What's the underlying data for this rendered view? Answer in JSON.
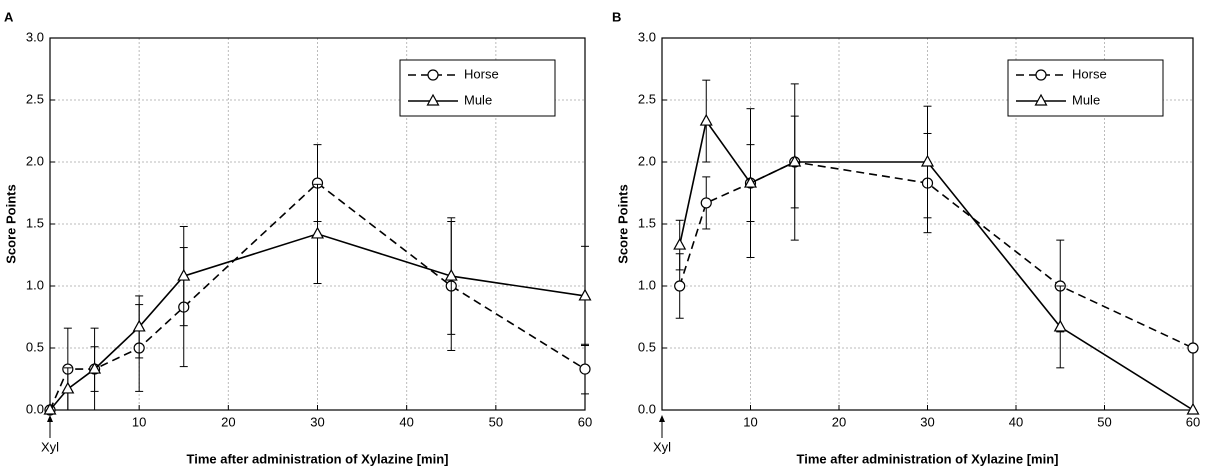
{
  "chart_data": [
    {
      "type": "line",
      "panel": "A",
      "xlabel": "Time after administration of Xylazine [min]",
      "ylabel": "Score Points",
      "annotation": "Xyl",
      "x": [
        0,
        2,
        5,
        10,
        15,
        30,
        45,
        60
      ],
      "xlim": [
        0,
        60
      ],
      "xticks": [
        10,
        20,
        30,
        40,
        50,
        60
      ],
      "ylim": [
        0,
        3
      ],
      "yticks": [
        {
          "value": 0,
          "label": "0.0"
        },
        {
          "value": 0.5,
          "label": "0.5"
        },
        {
          "value": 1,
          "label": "1.0"
        },
        {
          "value": 1.5,
          "label": "1.5"
        },
        {
          "value": 2,
          "label": "2.0"
        },
        {
          "value": 2.5,
          "label": "2.5"
        },
        {
          "value": 3,
          "label": "3.0"
        }
      ],
      "grid": true,
      "legend": "upper right",
      "series": [
        {
          "name": "Horse",
          "color": "#000000",
          "linestyle": "dashed",
          "marker": "circle",
          "values": [
            0,
            0.33,
            0.33,
            0.5,
            0.83,
            1.83,
            1.0,
            0.33
          ],
          "errors": [
            0,
            0.33,
            0.33,
            0.35,
            0.48,
            0.31,
            0.52,
            0.2
          ]
        },
        {
          "name": "Mule",
          "color": "#000000",
          "linestyle": "solid",
          "marker": "triangle",
          "values": [
            0,
            0.17,
            0.33,
            0.67,
            1.08,
            1.42,
            1.08,
            0.92
          ],
          "errors": [
            0,
            0.17,
            0.18,
            0.25,
            0.4,
            0.4,
            0.47,
            0.4
          ]
        }
      ]
    },
    {
      "type": "line",
      "panel": "B",
      "xlabel": "Time after administration of Xylazine [min]",
      "ylabel": "Score Points",
      "annotation": "Xyl",
      "x": [
        2,
        5,
        10,
        15,
        30,
        45,
        60
      ],
      "xlim": [
        0,
        60
      ],
      "xticks": [
        10,
        20,
        30,
        40,
        50,
        60
      ],
      "ylim": [
        0,
        3
      ],
      "yticks": [
        {
          "value": 0,
          "label": "0.0"
        },
        {
          "value": 0.5,
          "label": "0.5"
        },
        {
          "value": 1,
          "label": "1.0"
        },
        {
          "value": 1.5,
          "label": "1.5"
        },
        {
          "value": 2,
          "label": "2.0"
        },
        {
          "value": 2.5,
          "label": "2.5"
        },
        {
          "value": 3,
          "label": "3.0"
        }
      ],
      "grid": true,
      "legend": "upper right",
      "series": [
        {
          "name": "Horse",
          "color": "#000000",
          "linestyle": "dashed",
          "marker": "circle",
          "values": [
            1.0,
            1.67,
            1.83,
            2.0,
            1.83,
            1.0,
            0.5
          ],
          "errors": [
            0.26,
            0.21,
            0.31,
            0.37,
            0.4,
            0.37,
            0
          ]
        },
        {
          "name": "Mule",
          "color": "#000000",
          "linestyle": "solid",
          "marker": "triangle",
          "values": [
            1.33,
            2.33,
            1.83,
            2.0,
            2.0,
            0.67,
            0.0
          ],
          "errors": [
            0.2,
            0.33,
            0.6,
            0.63,
            0.45,
            0.33,
            0
          ]
        }
      ]
    }
  ]
}
